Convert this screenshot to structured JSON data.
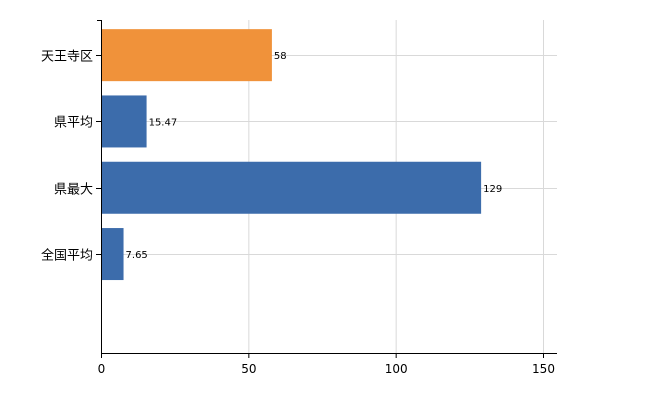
{
  "chart_data": {
    "type": "bar",
    "orientation": "horizontal",
    "title": "",
    "xlabel": "",
    "ylabel": "",
    "categories": [
      "天王寺区",
      "県平均",
      "県最大",
      "全国平均"
    ],
    "values": [
      58,
      15.47,
      129,
      7.65
    ],
    "value_labels": [
      "58",
      "15.47",
      "129",
      "7.65"
    ],
    "bar_colors": [
      "#f0923a",
      "#3c6cab",
      "#3c6cab",
      "#3c6cab"
    ],
    "xlim": [
      0,
      150
    ],
    "xticks": [
      0,
      50,
      100,
      150
    ],
    "xtick_labels": [
      "0",
      "50",
      "100",
      "150"
    ],
    "grid": true,
    "legend": "none"
  }
}
